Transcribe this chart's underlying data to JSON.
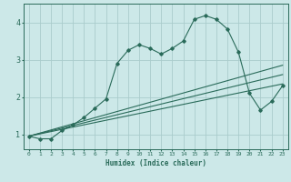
{
  "xlabel": "Humidex (Indice chaleur)",
  "ylabel": "",
  "bg_color": "#cce8e8",
  "grid_color": "#aacccc",
  "line_color": "#2a6b5a",
  "xlim": [
    -0.5,
    23.5
  ],
  "ylim": [
    0.6,
    4.5
  ],
  "x_ticks": [
    0,
    1,
    2,
    3,
    4,
    5,
    6,
    7,
    8,
    9,
    10,
    11,
    12,
    13,
    14,
    15,
    16,
    17,
    18,
    19,
    20,
    21,
    22,
    23
  ],
  "y_ticks": [
    1,
    2,
    3,
    4
  ],
  "curve1_x": [
    0,
    1,
    2,
    3,
    4,
    5,
    6,
    7,
    8,
    9,
    10,
    11,
    12,
    13,
    14,
    15,
    16,
    17,
    18,
    19,
    20,
    21,
    22,
    23
  ],
  "curve1_y": [
    0.95,
    0.88,
    0.88,
    1.1,
    1.25,
    1.45,
    1.7,
    1.95,
    2.9,
    3.25,
    3.4,
    3.3,
    3.15,
    3.3,
    3.5,
    4.08,
    4.18,
    4.08,
    3.82,
    3.2,
    2.1,
    1.65,
    1.88,
    2.3
  ],
  "curve2_x": [
    0,
    23
  ],
  "curve2_y": [
    0.95,
    2.85
  ],
  "curve3_x": [
    0,
    23
  ],
  "curve3_y": [
    0.95,
    2.6
  ],
  "curve4_x": [
    0,
    23
  ],
  "curve4_y": [
    0.95,
    2.35
  ],
  "figwidth": 3.2,
  "figheight": 2.0,
  "dpi": 100
}
